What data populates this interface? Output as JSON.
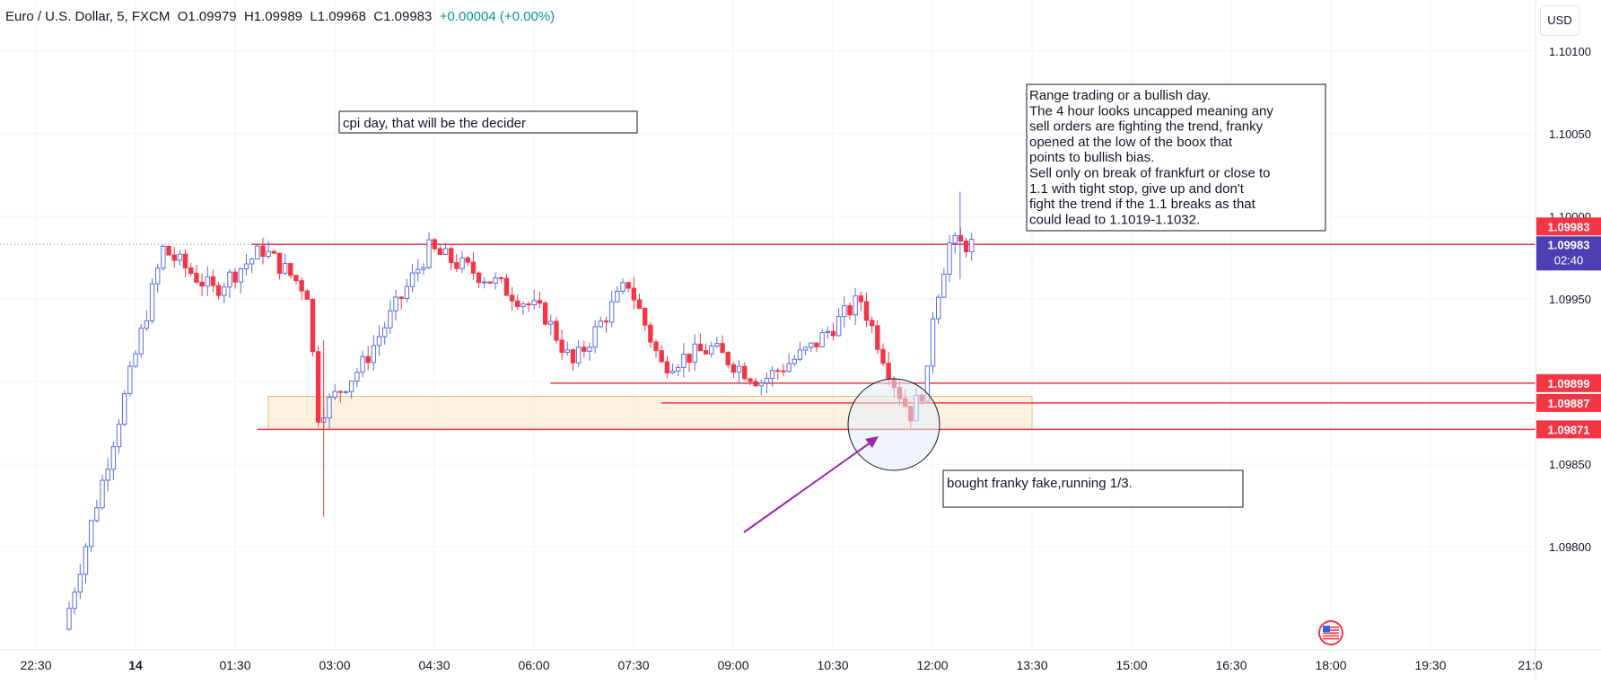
{
  "header": {
    "symbol": "Euro / U.S. Dollar, 5, FXCM",
    "open": "O1.09979",
    "high": "H1.09989",
    "low": "L1.09968",
    "close": "C1.09983",
    "change": "+0.00004 (+0.00%)"
  },
  "currency_button": "USD",
  "colors": {
    "up": "#5b6ee1",
    "down": "#f23645",
    "grid": "#f0f3fa",
    "line": "#f23645",
    "zone": "#fde8cc",
    "price_tag": "#4c3fb3",
    "arrow": "#9c27b0"
  },
  "annotations": {
    "cpi": "cpi day, that will be the decider",
    "bought": "bought franky fake,running 1/3.",
    "range": [
      "Range trading or a bullish day.",
      "The 4 hour looks uncapped meaning any",
      "sell orders are fighting the trend, franky",
      "opened at the low of the boox that",
      "points to bullish bias.",
      "Sell only on break of frankfurt or close to",
      "1.1 with tight stop, give up and don't",
      "fight the trend if the 1.1 breaks as that",
      "could lead to 1.1019-1.1032."
    ]
  },
  "price_tags": {
    "last_red": "1.09983",
    "last_current": "1.09983",
    "countdown": "02:40",
    "level_1": "1.09899",
    "level_2": "1.09887",
    "level_3": "1.09871"
  },
  "chart_data": {
    "type": "candlestick",
    "symbol": "Euro / U.S. Dollar",
    "timeframe": "5",
    "x_ticks": [
      "22:30",
      "14",
      "01:30",
      "03:00",
      "04:30",
      "06:00",
      "07:30",
      "09:00",
      "10:30",
      "12:00",
      "13:30",
      "15:00",
      "16:30",
      "18:00",
      "19:30",
      "21:0"
    ],
    "y_ticks": [
      "1.10100",
      "1.10050",
      "1.10000",
      "1.09950",
      "1.09900",
      "1.09850",
      "1.09800"
    ],
    "y_values": [
      1.101,
      1.1005,
      1.1,
      1.0995,
      1.099,
      1.0985,
      1.098
    ],
    "ylim": [
      1.09745,
      1.10128
    ],
    "horizontal_levels": [
      1.09983,
      1.09899,
      1.09887,
      1.09871
    ],
    "zone": {
      "top": 1.09891,
      "bottom": 1.09871,
      "x_start": "02:00",
      "x_end": "13:30"
    },
    "ohlc_anchors": [
      [
        "23:00",
        1.0975
      ],
      [
        "00:30",
        1.0998
      ],
      [
        "01:15",
        1.09955
      ],
      [
        "02:00",
        1.0998
      ],
      [
        "02:40",
        1.09955
      ],
      [
        "02:50",
        1.0988
      ],
      [
        "03:30",
        1.0991
      ],
      [
        "04:30",
        1.0998
      ],
      [
        "05:30",
        1.0996
      ],
      [
        "06:15",
        1.0994
      ],
      [
        "06:40",
        1.0991
      ],
      [
        "07:30",
        1.0996
      ],
      [
        "08:00",
        1.0991
      ],
      [
        "08:45",
        1.0992
      ],
      [
        "09:30",
        1.099
      ],
      [
        "10:15",
        1.0992
      ],
      [
        "11:00",
        1.0995
      ],
      [
        "11:30",
        1.099
      ],
      [
        "11:45",
        1.0988
      ],
      [
        "12:00",
        1.099
      ],
      [
        "12:05",
        1.0994
      ],
      [
        "12:20",
        1.09983
      ],
      [
        "12:40",
        1.09983
      ]
    ],
    "last_price": 1.09983
  }
}
